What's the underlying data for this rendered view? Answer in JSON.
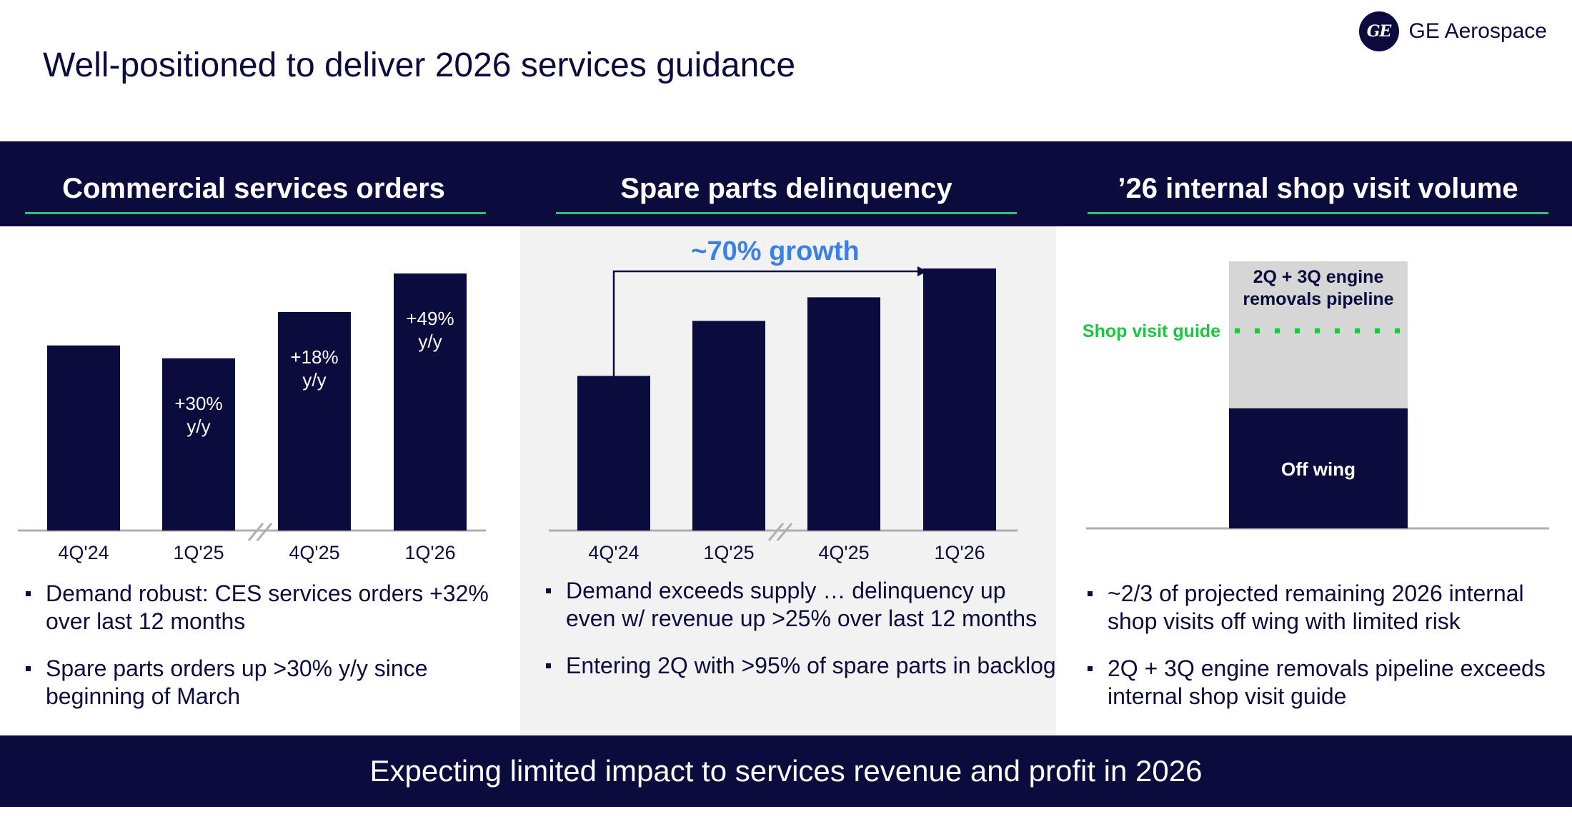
{
  "slide": {
    "title": "Well-positioned to deliver 2026 services guidance",
    "footer": "Expecting limited impact to services revenue and profit in 2026"
  },
  "brand": {
    "mark": "GE",
    "name": "GE Aerospace"
  },
  "colors": {
    "navy": "#0b0c3d",
    "green_rule": "#2fc46b",
    "growth_blue": "#3a80e6",
    "guide_green": "#18c93f",
    "pipeline_gray": "#d6d6d6",
    "panel_gray": "#f2f2f2"
  },
  "columns": [
    {
      "title": "Commercial services orders",
      "bullets": [
        "Demand robust: CES services orders +32% over last 12 months",
        "Spare parts orders up >30% y/y since beginning of March"
      ]
    },
    {
      "title": "Spare parts delinquency",
      "bullets": [
        "Demand exceeds supply … delinquency up even w/ revenue up >25% over last 12 months",
        "Entering 2Q with >95% of spare parts in backlog"
      ]
    },
    {
      "title": "’26 internal shop visit volume",
      "bullets": [
        "~2/3 of projected remaining 2026 internal shop visits off wing with limited risk",
        "2Q + 3Q engine removals pipeline exceeds internal shop visit guide"
      ]
    }
  ],
  "chart_data": [
    {
      "type": "bar",
      "title": "Commercial services orders",
      "categories": [
        "4Q'24",
        "1Q'25",
        "4Q'25",
        "1Q'26"
      ],
      "values": [
        72,
        67,
        85,
        100
      ],
      "value_scale": "relative (unlabeled axis, tallest bar = 100)",
      "axis_break_between": [
        "1Q'25",
        "4Q'25"
      ],
      "data_labels": [
        "",
        "+30%\ny/y",
        "+18%\ny/y",
        "+49%\ny/y"
      ]
    },
    {
      "type": "bar",
      "title": "Spare parts delinquency",
      "categories": [
        "4Q'24",
        "1Q'25",
        "4Q'25",
        "1Q'26"
      ],
      "values": [
        59,
        80,
        89,
        100
      ],
      "value_scale": "relative (unlabeled axis, tallest bar = 100)",
      "axis_break_between": [
        "1Q'25",
        "4Q'25"
      ],
      "annotation": {
        "text": "~70% growth",
        "from": "4Q'24",
        "to": "1Q'26"
      }
    },
    {
      "type": "bar",
      "title": "’26 internal shop visit volume",
      "categories": [
        ""
      ],
      "stack": [
        {
          "name": "Off wing",
          "value": 45
        },
        {
          "name": "2Q + 3Q engine removals pipeline",
          "value": 55
        }
      ],
      "value_scale": "relative (unlabeled axis, total = 100)",
      "guide_line": {
        "label": "Shop visit guide",
        "value": 74,
        "style": "dotted"
      }
    }
  ]
}
